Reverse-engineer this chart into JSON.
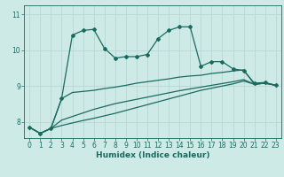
{
  "xlabel": "Humidex (Indice chaleur)",
  "xlim": [
    -0.5,
    23.5
  ],
  "ylim": [
    7.55,
    11.25
  ],
  "yticks": [
    8,
    9,
    10,
    11
  ],
  "xticks": [
    0,
    1,
    2,
    3,
    4,
    5,
    6,
    7,
    8,
    9,
    10,
    11,
    12,
    13,
    14,
    15,
    16,
    17,
    18,
    19,
    20,
    21,
    22,
    23
  ],
  "bg_color": "#cdeae7",
  "line_color": "#1a6b5e",
  "grid_color": "#b8d8d5",
  "x_values": [
    0,
    1,
    2,
    3,
    4,
    5,
    6,
    7,
    8,
    9,
    10,
    11,
    12,
    13,
    14,
    15,
    16,
    17,
    18,
    19,
    20,
    21,
    22,
    23
  ],
  "line1_y": [
    7.85,
    7.68,
    7.82,
    8.65,
    10.42,
    10.55,
    10.58,
    10.05,
    9.78,
    9.82,
    9.82,
    9.88,
    10.32,
    10.55,
    10.65,
    10.65,
    9.55,
    9.68,
    9.68,
    9.48,
    9.43,
    9.08,
    9.1,
    9.02
  ],
  "line2_y": [
    7.85,
    7.68,
    7.82,
    8.65,
    8.82,
    8.85,
    8.88,
    8.93,
    8.97,
    9.02,
    9.08,
    9.12,
    9.16,
    9.2,
    9.25,
    9.28,
    9.3,
    9.35,
    9.38,
    9.42,
    9.45,
    9.05,
    9.08,
    9.02
  ],
  "line3_y": [
    7.85,
    7.68,
    7.82,
    8.05,
    8.15,
    8.25,
    8.35,
    8.43,
    8.51,
    8.57,
    8.63,
    8.69,
    8.75,
    8.81,
    8.87,
    8.92,
    8.97,
    9.02,
    9.07,
    9.12,
    9.18,
    9.05,
    9.08,
    9.02
  ],
  "line4_y": [
    7.85,
    7.68,
    7.82,
    7.9,
    7.97,
    8.04,
    8.1,
    8.17,
    8.24,
    8.32,
    8.4,
    8.48,
    8.56,
    8.64,
    8.72,
    8.8,
    8.88,
    8.94,
    9.0,
    9.06,
    9.14,
    9.05,
    9.08,
    9.02
  ]
}
